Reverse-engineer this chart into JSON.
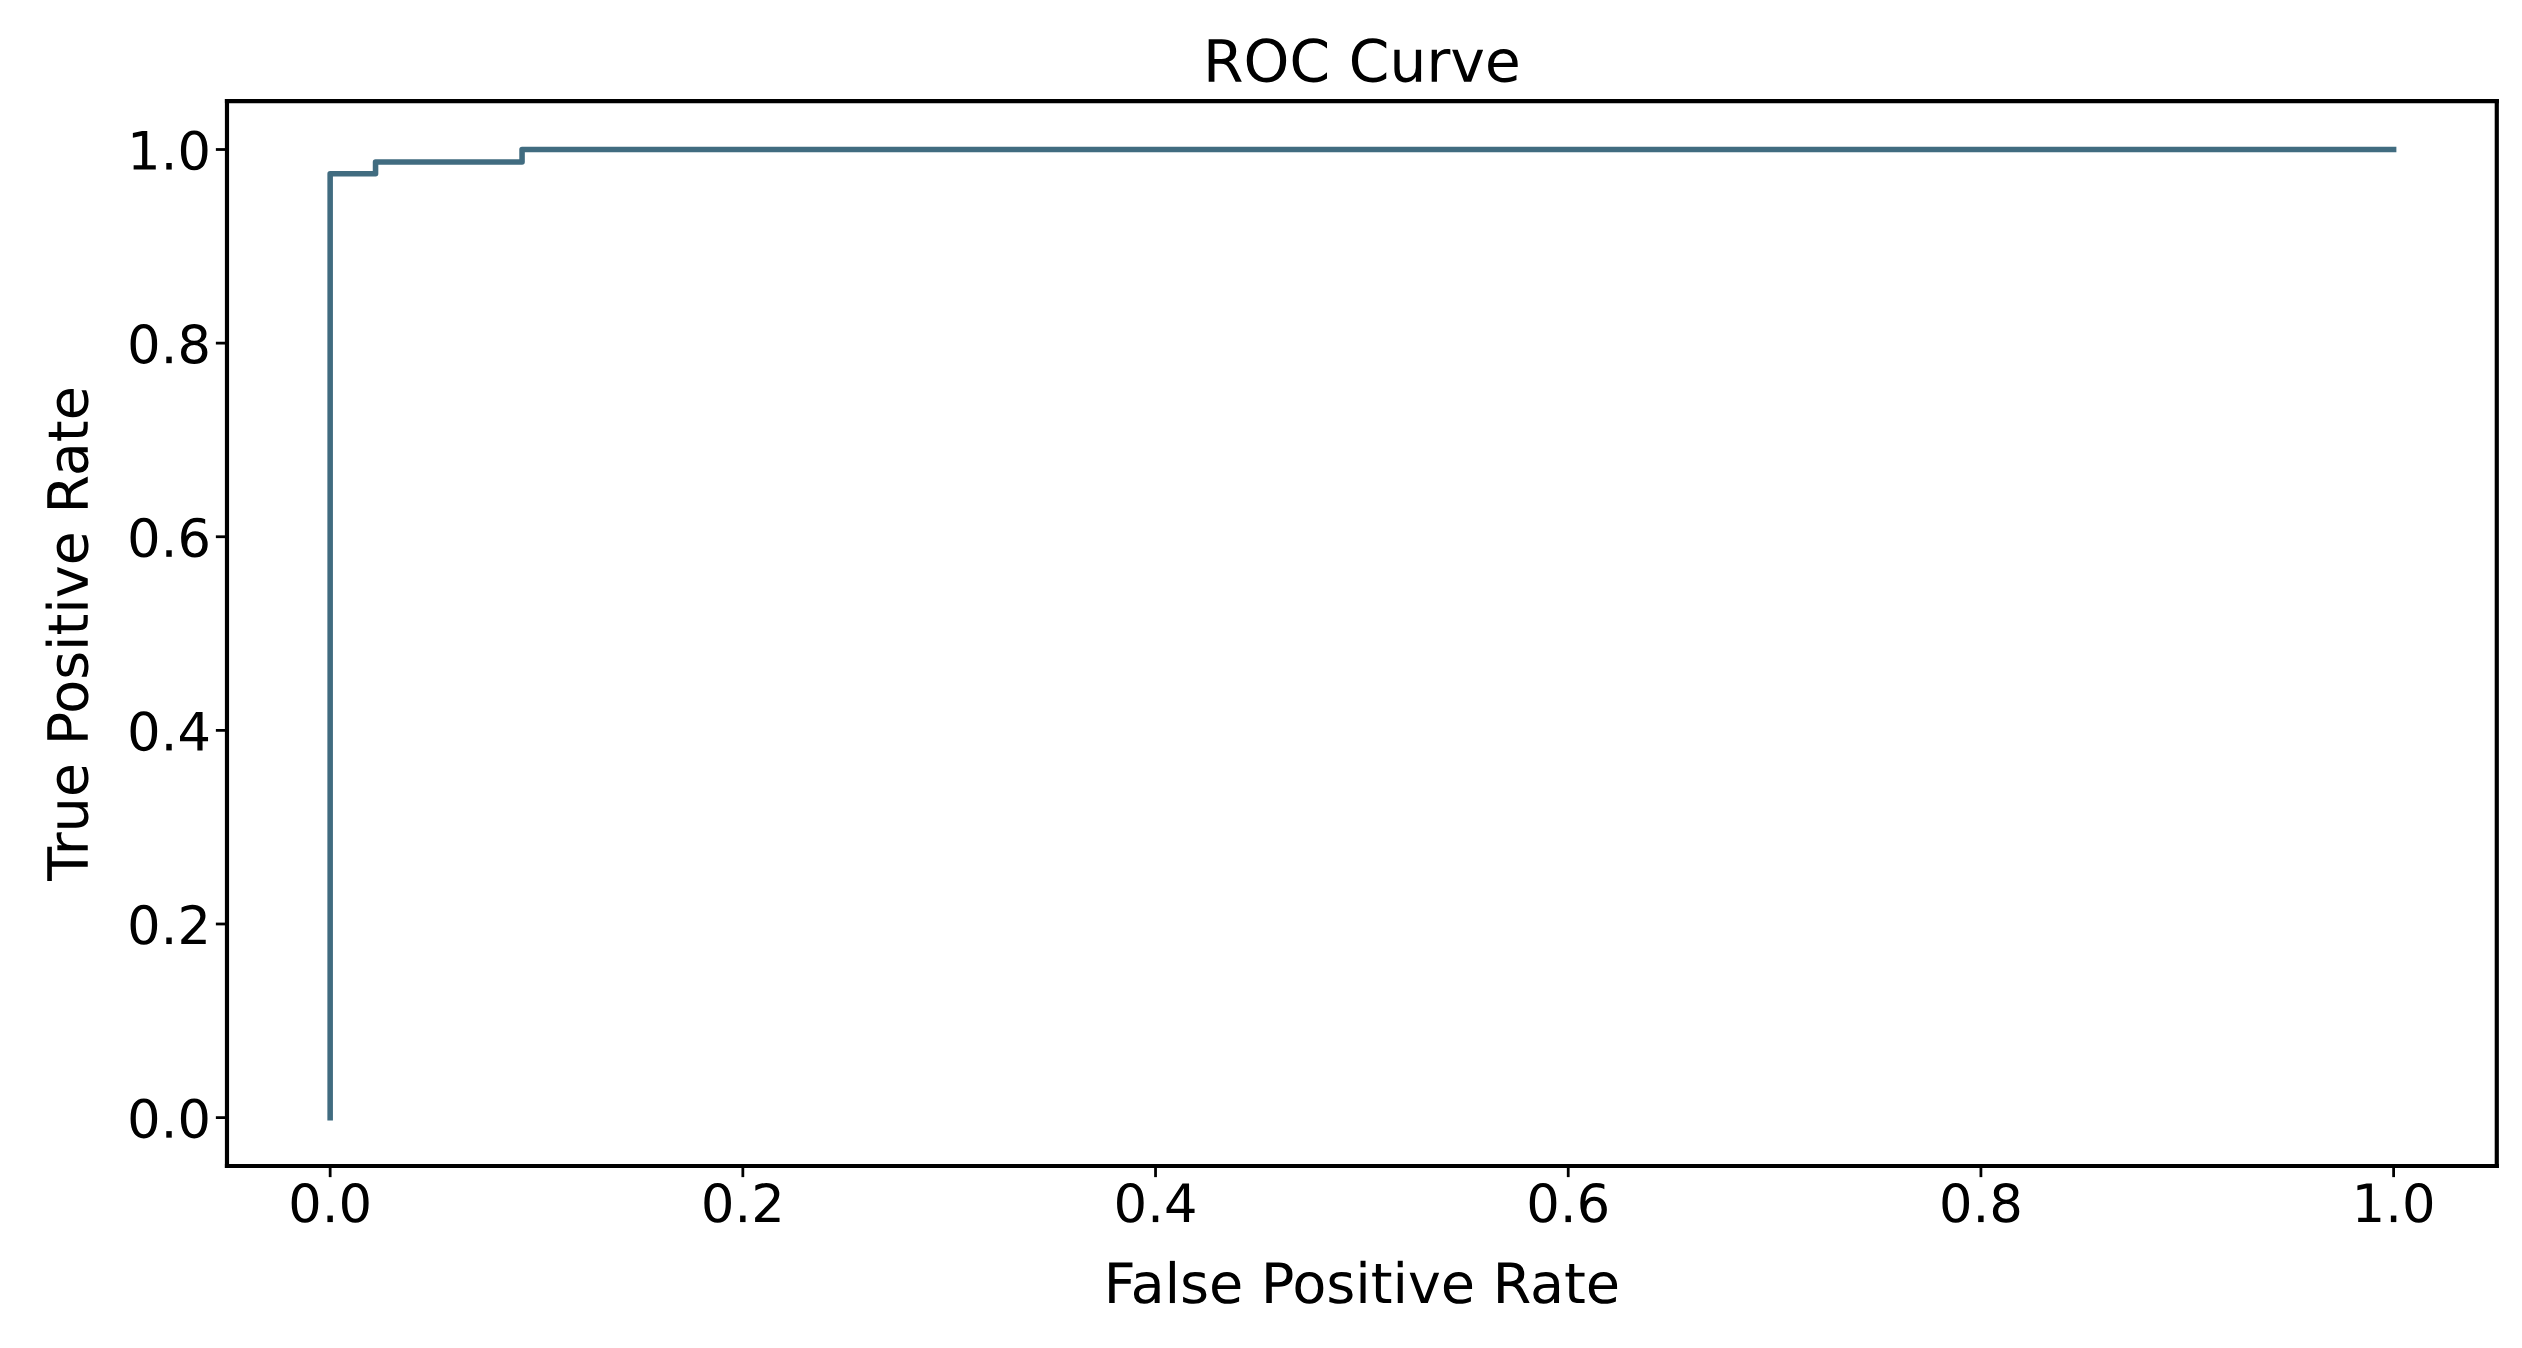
{
  "chart_data": {
    "type": "step",
    "title": "ROC Curve",
    "xlabel": "False Positive Rate",
    "ylabel": "True Positive Rate",
    "x": [
      0,
      0,
      0.022,
      0.093,
      1.0
    ],
    "series": [
      {
        "color": "#416c80",
        "values": [
          0,
          0.975,
          0.987,
          1.0,
          1.0
        ]
      }
    ],
    "xlim": [
      -0.05,
      1.05
    ],
    "ylim": [
      -0.05,
      1.05
    ],
    "xticks": [
      {
        "value": 0,
        "label": "0.0"
      },
      0.2,
      0.4,
      0.6,
      0.8,
      {
        "value": 1,
        "label": "1.0"
      }
    ],
    "yticks": [
      {
        "value": 0,
        "label": "0.0"
      },
      0.2,
      0.4,
      0.6,
      0.8,
      {
        "value": 1,
        "label": "1.0"
      }
    ],
    "grid": false,
    "legend": false
  }
}
